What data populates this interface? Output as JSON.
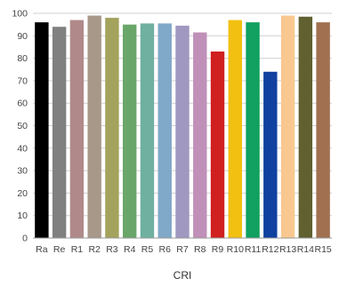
{
  "chart_data": {
    "type": "bar",
    "title": "",
    "xlabel": "CRI",
    "ylabel": "",
    "ylim": [
      0,
      100
    ],
    "y_ticks": [
      0,
      10,
      20,
      30,
      40,
      50,
      60,
      70,
      80,
      90,
      100
    ],
    "grid": "horizontal",
    "legend": "none",
    "categories": [
      "Ra",
      "Re",
      "R1",
      "R2",
      "R3",
      "R4",
      "R5",
      "R6",
      "R7",
      "R8",
      "R9",
      "R10",
      "R11",
      "R12",
      "R13",
      "R14",
      "R15"
    ],
    "values": [
      96,
      94,
      97,
      99,
      98,
      95,
      95.5,
      95.5,
      94.5,
      91.5,
      83,
      97,
      96,
      74,
      99,
      98.5,
      96
    ],
    "colors": [
      "#000000",
      "#808080",
      "#b08a8a",
      "#a8988a",
      "#a3a35e",
      "#6aa66a",
      "#6fb0a0",
      "#80a8c8",
      "#a098c0",
      "#c090b8",
      "#d02020",
      "#f2c010",
      "#10a060",
      "#1040a0",
      "#f8c890",
      "#606030",
      "#a07050"
    ]
  }
}
